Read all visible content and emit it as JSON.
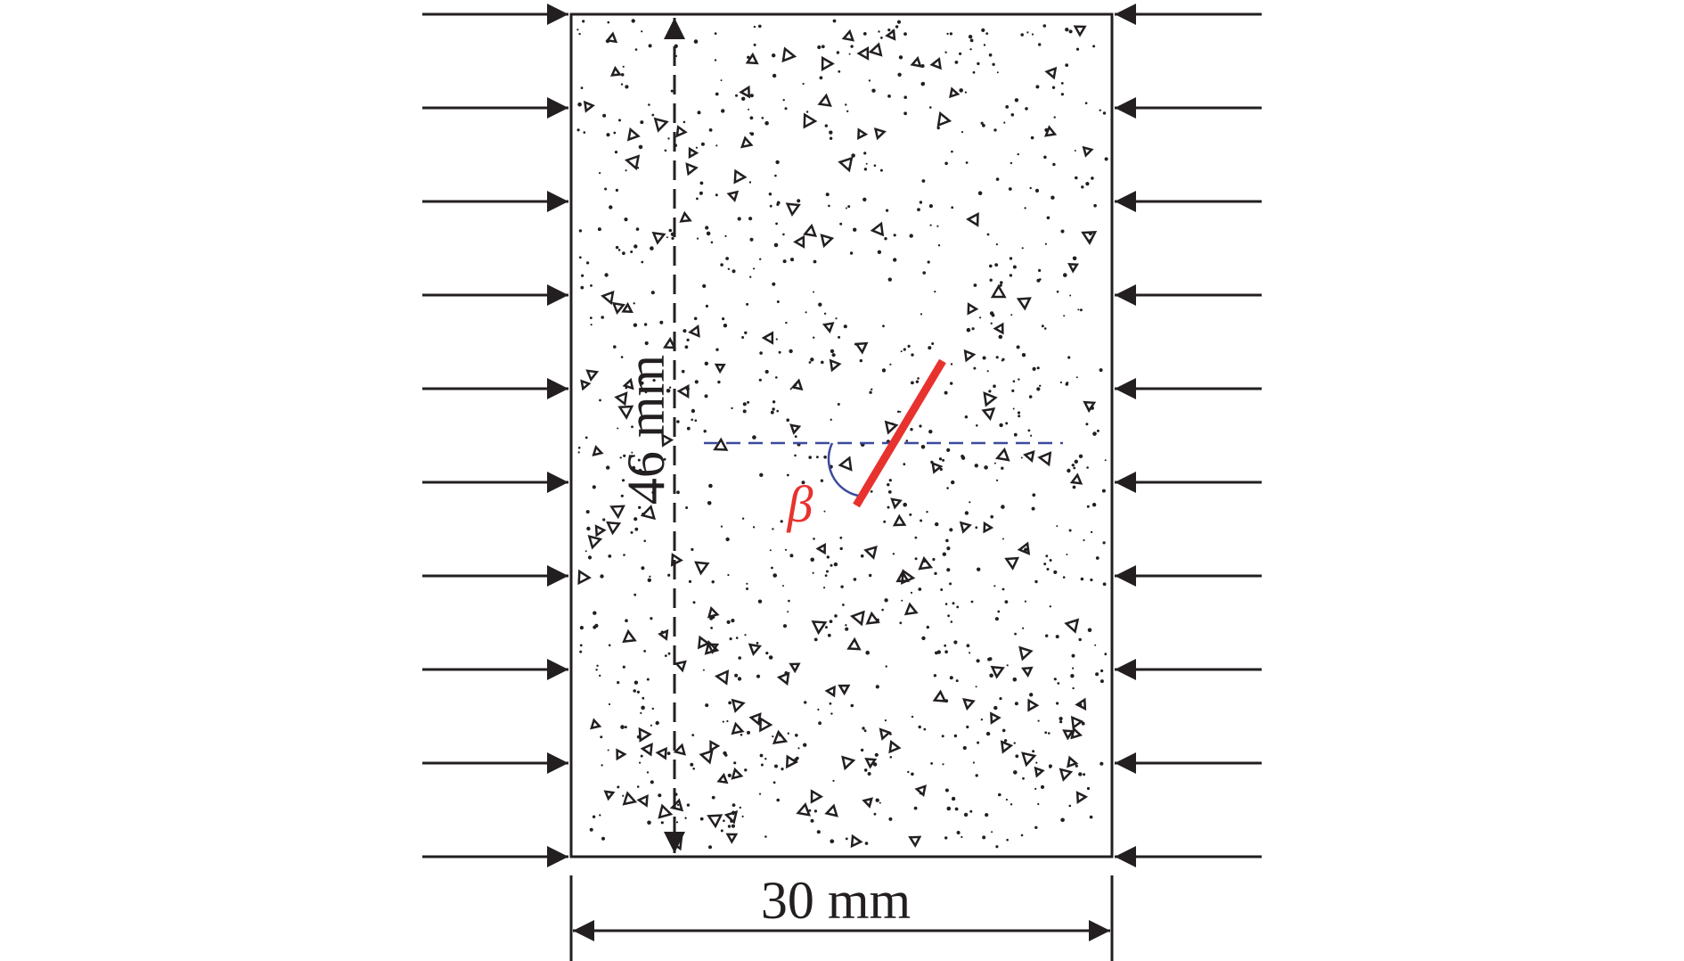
{
  "dimensions": {
    "height": "46 mm",
    "width": "30 mm"
  },
  "angle_label": "β"
}
